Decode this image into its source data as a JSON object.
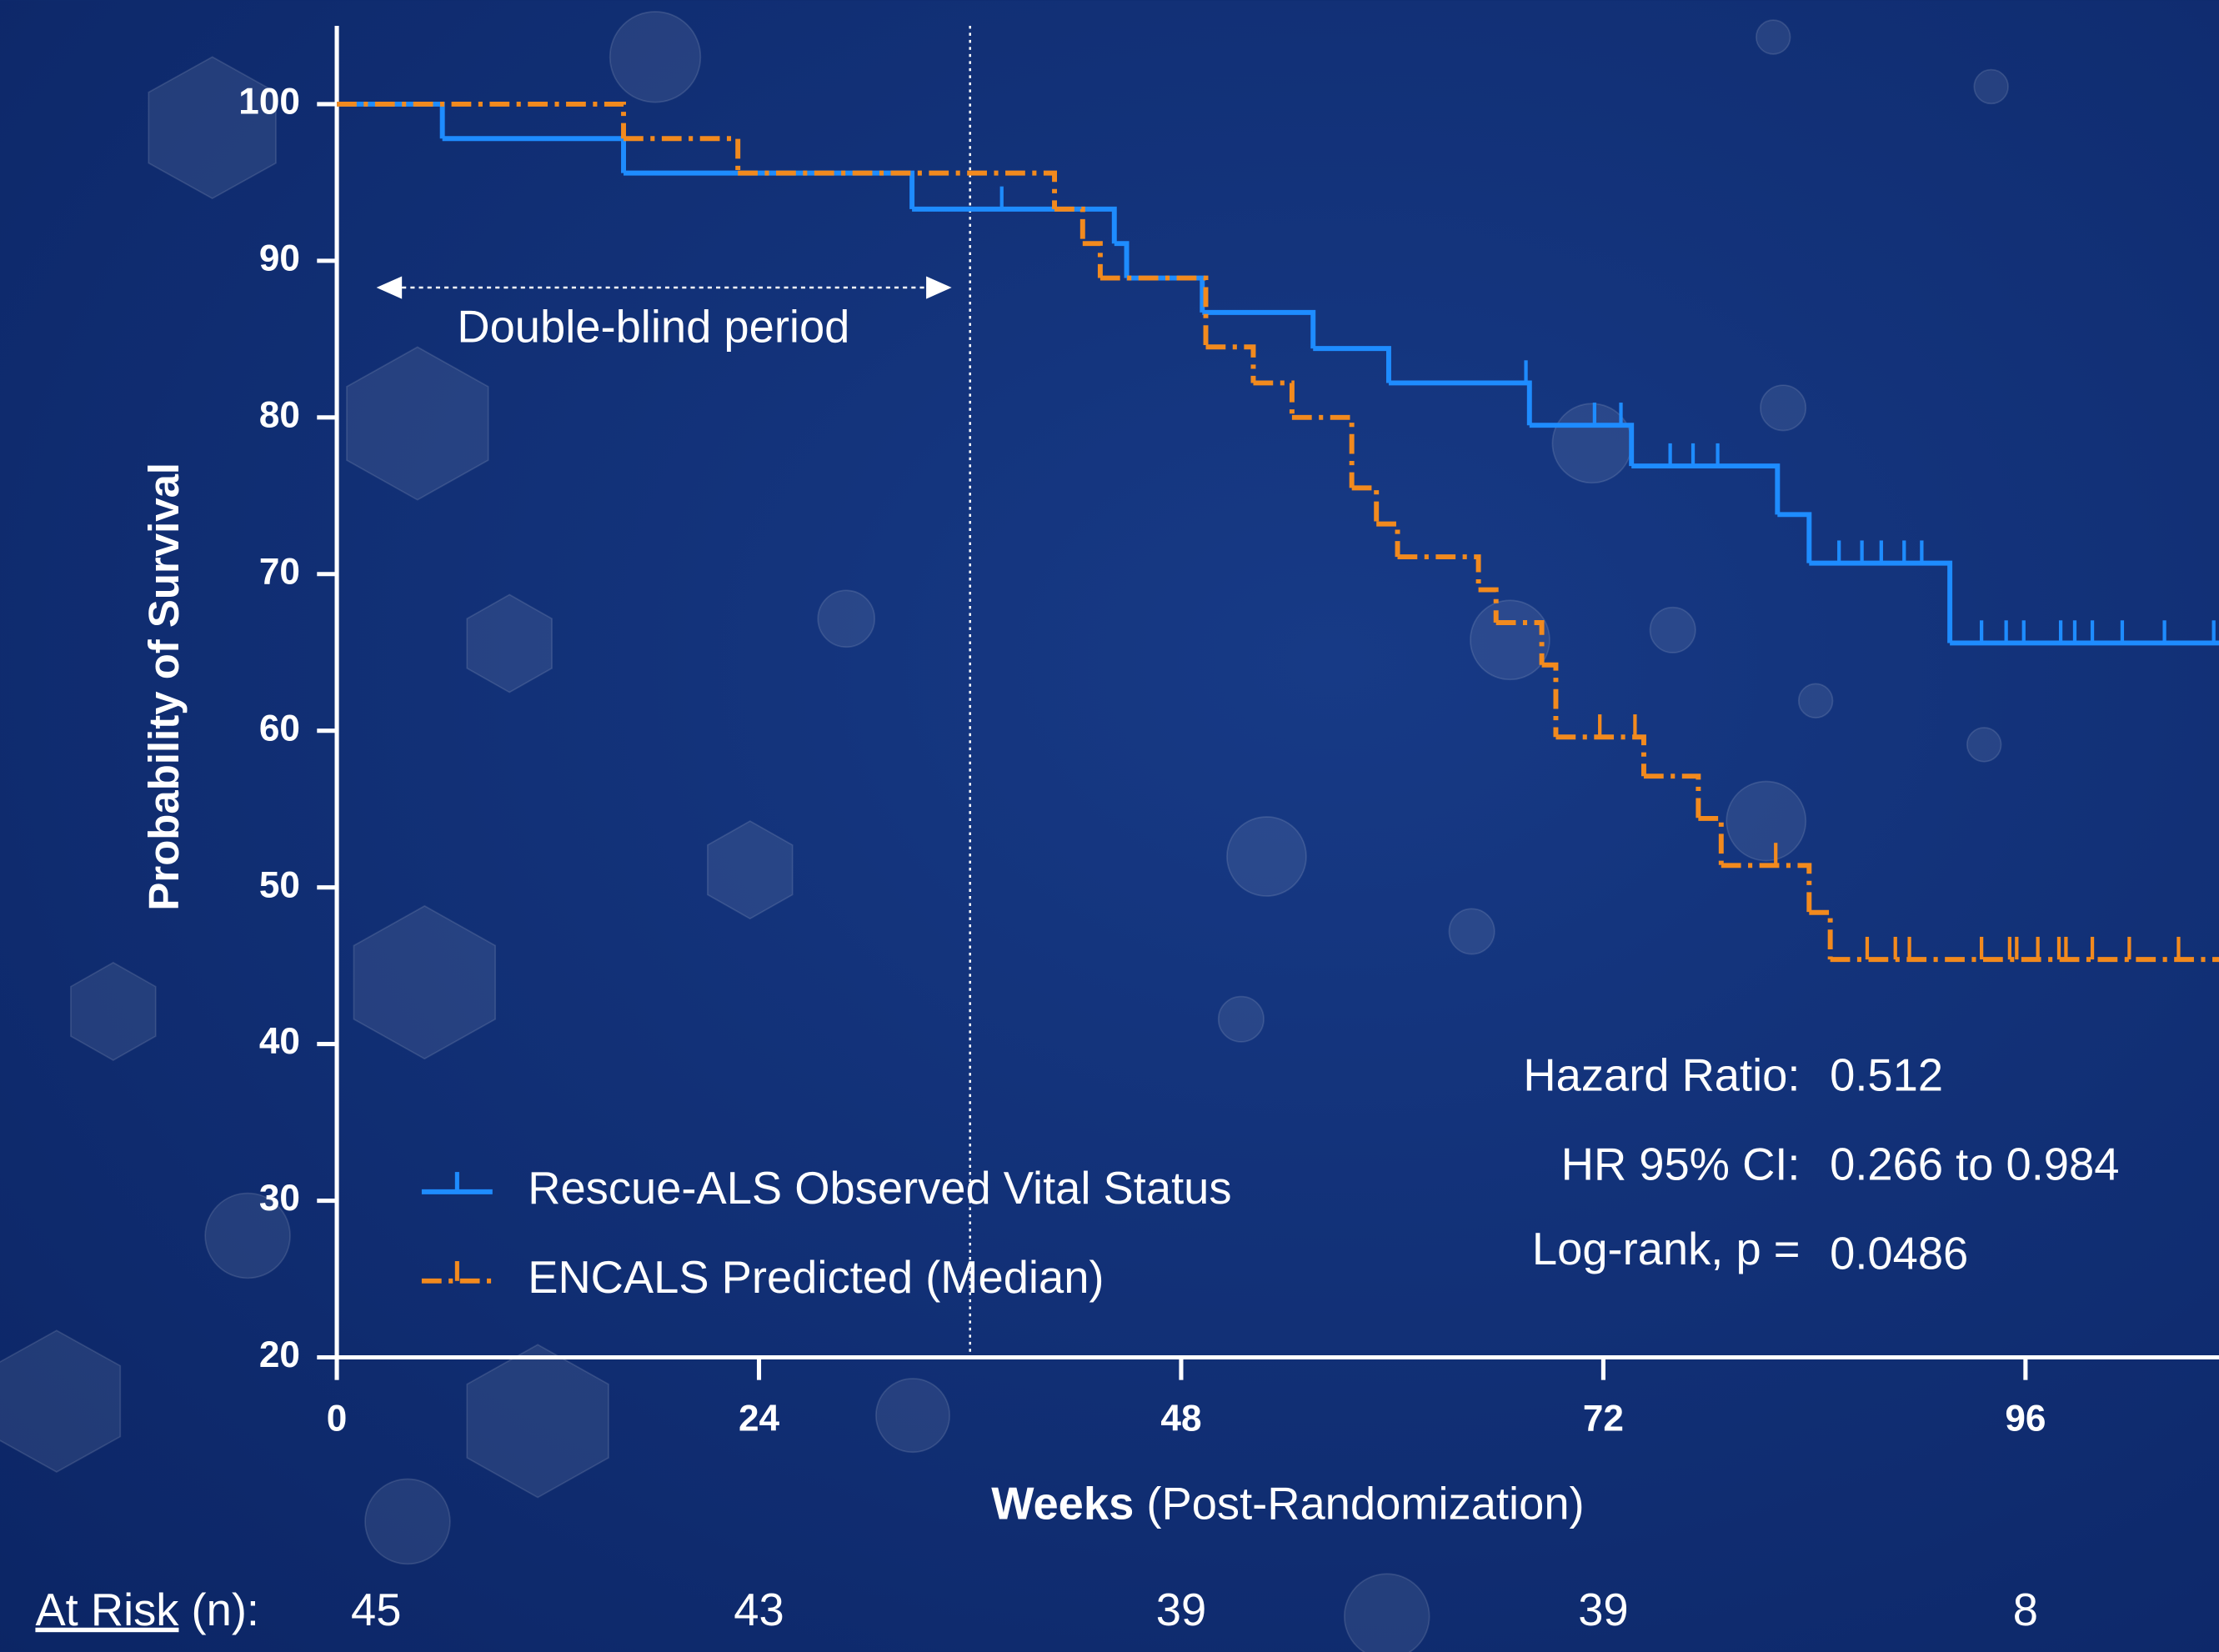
{
  "chart_data": {
    "type": "step",
    "y_label": "Probability of Survival",
    "x_label": [
      "Weeks",
      "(Post-Randomization)"
    ],
    "xlim": [
      0,
      107
    ],
    "ylim": [
      20,
      105
    ],
    "xticks": [
      0,
      24,
      48,
      72,
      96
    ],
    "yticks": [
      20,
      30,
      40,
      50,
      60,
      70,
      80,
      90,
      100
    ],
    "series": [
      {
        "name": "Rescue-ALS Observed Vital Status",
        "color": "#1e8cff",
        "dash": false,
        "x": [
          0,
          6.0,
          16.3,
          32.7,
          44.2,
          44.9,
          49.2,
          55.5,
          59.8,
          67.8,
          73.6,
          81.9,
          83.7,
          91.7
        ],
        "values": [
          100,
          97.8,
          95.6,
          93.3,
          91.1,
          88.9,
          86.7,
          84.4,
          82.2,
          79.5,
          76.9,
          73.8,
          70.7,
          65.6
        ],
        "censored_x": [
          37.8,
          67.6,
          71.5,
          73.0,
          75.8,
          77.1,
          78.5,
          85.4,
          86.7,
          87.8,
          89.1,
          90.1,
          93.5,
          94.9,
          95.9,
          98.0,
          98.8,
          99.8,
          101.5,
          103.9,
          106.7
        ]
      },
      {
        "name": "ENCALS Predicted (Median)",
        "color": "#f28a1e",
        "dash": true,
        "x": [
          0,
          16.3,
          22.8,
          40.8,
          42.4,
          43.4,
          49.4,
          52.1,
          54.3,
          57.7,
          59.1,
          60.3,
          64.9,
          65.9,
          68.5,
          69.3,
          74.3,
          77.4,
          78.7,
          83.7,
          84.9
        ],
        "values": [
          100,
          97.8,
          95.6,
          93.3,
          91.1,
          88.9,
          84.5,
          82.2,
          80.0,
          75.5,
          73.2,
          71.1,
          69.0,
          66.9,
          64.2,
          59.6,
          57.1,
          54.4,
          51.4,
          48.4,
          45.4
        ],
        "censored_x": [
          71.8,
          73.8,
          81.8,
          87.0,
          88.6,
          89.4,
          93.5,
          95.1,
          95.5,
          96.7,
          97.9,
          98.3,
          99.8,
          101.9,
          104.7
        ]
      }
    ],
    "period": {
      "label": "Double-blind period",
      "end": 36.0
    },
    "stats": [
      {
        "label": "Hazard Ratio:",
        "value": 0.512
      },
      {
        "label": "HR 95% CI:",
        "value": "0.266 to 0.984"
      },
      {
        "label": "Log-rank, p =",
        "value": 0.0486
      }
    ],
    "at_risk": {
      "label": "At Risk",
      "unit": "(n):",
      "x": [
        0,
        24,
        48,
        72,
        96
      ],
      "values": [
        45,
        43,
        39,
        39,
        8
      ]
    }
  }
}
